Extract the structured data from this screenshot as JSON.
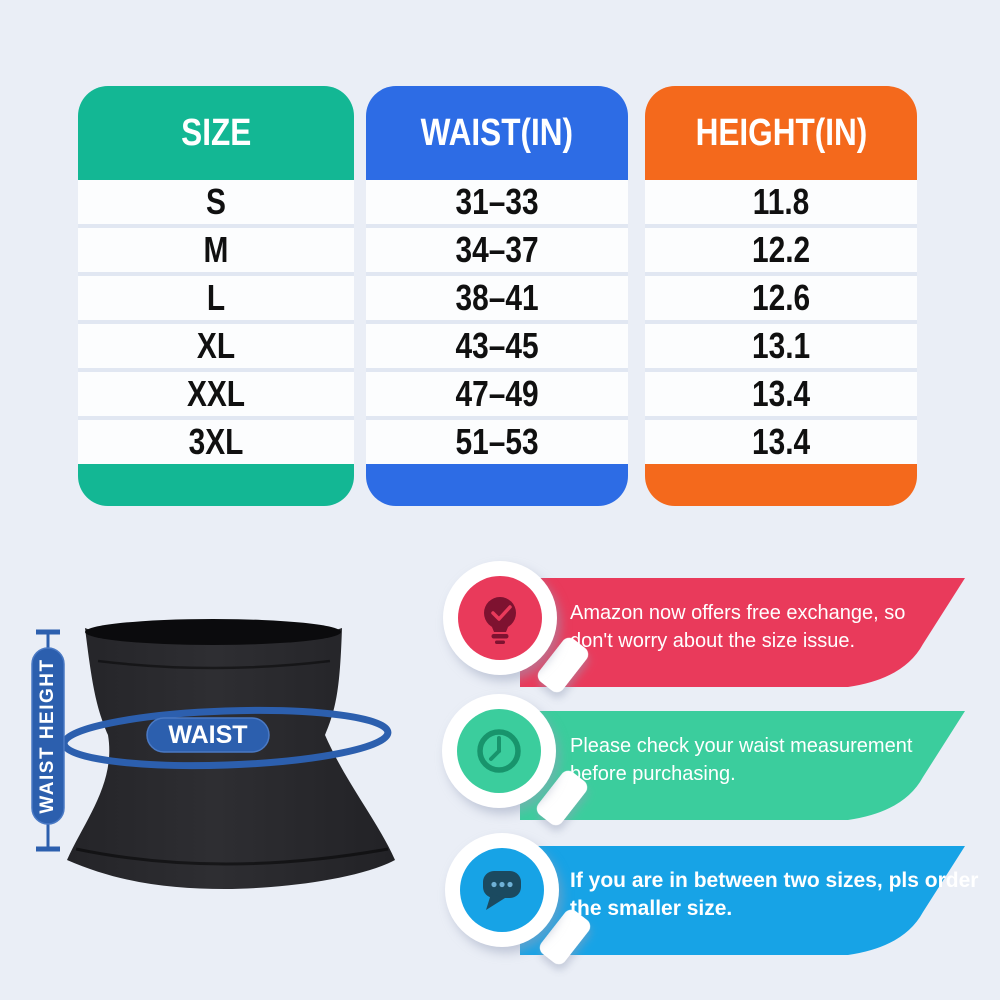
{
  "page": {
    "background": "#eaeef6"
  },
  "size_table": {
    "columns": [
      {
        "header": "SIZE",
        "color": "#13b794",
        "values": [
          "S",
          "M",
          "L",
          "XL",
          "XXL",
          "3XL"
        ]
      },
      {
        "header": "WAIST(IN)",
        "color": "#2d6ce5",
        "values": [
          "31–33",
          "34–37",
          "38–41",
          "43–45",
          "47–49",
          "51–53"
        ]
      },
      {
        "header": "HEIGHT(IN)",
        "color": "#f4691c",
        "values": [
          "11.8",
          "12.2",
          "12.6",
          "13.1",
          "13.4",
          "13.4"
        ]
      }
    ]
  },
  "chart_data": {
    "type": "table",
    "columns": [
      "SIZE",
      "WAIST(IN)",
      "HEIGHT(IN)"
    ],
    "rows": [
      [
        "S",
        "31–33",
        "11.8"
      ],
      [
        "M",
        "34–37",
        "12.2"
      ],
      [
        "L",
        "38–41",
        "12.6"
      ],
      [
        "XL",
        "43–45",
        "13.1"
      ],
      [
        "XXL",
        "47–49",
        "13.4"
      ],
      [
        "3XL",
        "51–53",
        "13.4"
      ]
    ],
    "header_colors": [
      "#13b794",
      "#2d6ce5",
      "#f4691c"
    ]
  },
  "illustration": {
    "waist_label": "WAIST",
    "height_label": "WAIST HEIGHT",
    "accent_color": "#2c5fae"
  },
  "callouts": [
    {
      "icon": "lightbulb-check-icon",
      "color": "#e93a5b",
      "icon_dark": "#7e1230",
      "line1": "Amazon now offers free exchange, so",
      "line2": "don't worry about the size issue."
    },
    {
      "icon": "clock-icon",
      "color": "#3bcd9d",
      "icon_dark": "#18946c",
      "line1": "Please check your waist measurement",
      "line2": "before purchasing."
    },
    {
      "icon": "chat-dots-icon",
      "color": "#17a3e6",
      "icon_dark": "#1b4a60",
      "line1": "If you are in between two sizes, pls order",
      "line2": "the smaller size."
    }
  ]
}
